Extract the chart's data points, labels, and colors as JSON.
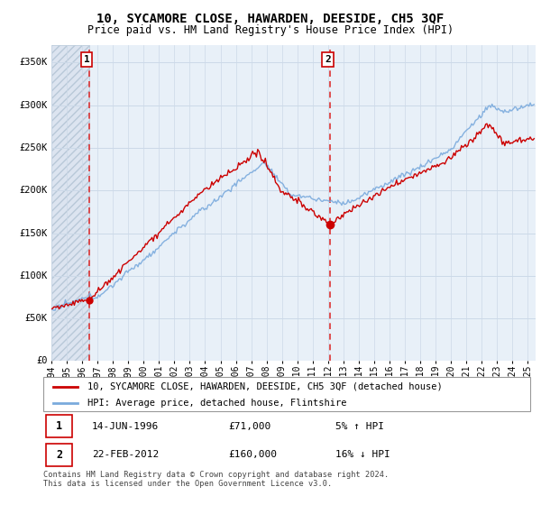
{
  "title": "10, SYCAMORE CLOSE, HAWARDEN, DEESIDE, CH5 3QF",
  "subtitle": "Price paid vs. HM Land Registry's House Price Index (HPI)",
  "ylim": [
    0,
    370000
  ],
  "yticks": [
    0,
    50000,
    100000,
    150000,
    200000,
    250000,
    300000,
    350000
  ],
  "ytick_labels": [
    "£0",
    "£50K",
    "£100K",
    "£150K",
    "£200K",
    "£250K",
    "£300K",
    "£350K"
  ],
  "xlim_start": 1994.0,
  "xlim_end": 2025.5,
  "transaction1_date": 1996.45,
  "transaction1_price": 71000,
  "transaction1_label": "1",
  "transaction2_date": 2012.13,
  "transaction2_price": 160000,
  "transaction2_label": "2",
  "legend_line1": "10, SYCAMORE CLOSE, HAWARDEN, DEESIDE, CH5 3QF (detached house)",
  "legend_line2": "HPI: Average price, detached house, Flintshire",
  "table_row1_num": "1",
  "table_row1_date": "14-JUN-1996",
  "table_row1_price": "£71,000",
  "table_row1_hpi": "5% ↑ HPI",
  "table_row2_num": "2",
  "table_row2_date": "22-FEB-2012",
  "table_row2_price": "£160,000",
  "table_row2_hpi": "16% ↓ HPI",
  "footer": "Contains HM Land Registry data © Crown copyright and database right 2024.\nThis data is licensed under the Open Government Licence v3.0.",
  "grid_color": "#ccd9e8",
  "line_red": "#cc0000",
  "line_blue": "#7aaadd",
  "dashed_red": "#dd3333",
  "bg_hatch": "#dce4f0",
  "bg_main": "#e8f0f8",
  "hatch_edgecolor": "#b8c8d8"
}
